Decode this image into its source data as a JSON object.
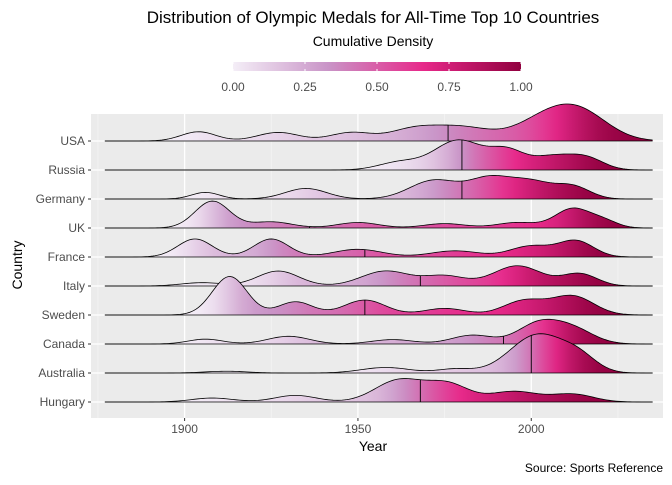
{
  "chart_data": {
    "type": "ridgeline",
    "title": "Distribution of Olympic Medals for All-Time Top 10 Countries",
    "subtitle": "Cumulative Density",
    "xlabel": "Year",
    "ylabel": "Country",
    "caption": "Source: Sports Reference",
    "x_range": [
      1873,
      2038
    ],
    "x_ticks": [
      1900,
      1950,
      2000
    ],
    "legend": {
      "position": "top",
      "breaks": [
        "0.00",
        "0.25",
        "0.50",
        "0.75",
        "1.00"
      ],
      "colors": [
        "#f4eef7",
        "#c994c7",
        "#e7298a",
        "#91003f"
      ]
    },
    "grid": true,
    "quantile_lines": "median",
    "series": [
      {
        "name": "USA",
        "x_start": 1877,
        "x_end": 2035,
        "median": 1976,
        "peaks": [
          [
            1904,
            0.42,
            5
          ],
          [
            1927,
            0.39,
            6
          ],
          [
            1948,
            0.38,
            6
          ],
          [
            1966,
            0.52,
            7
          ],
          [
            1980,
            0.6,
            8
          ],
          [
            2005,
            1.05,
            9
          ],
          [
            2015,
            0.95,
            8
          ]
        ]
      },
      {
        "name": "Russia",
        "x_start": 1877,
        "x_end": 2035,
        "median": 1980,
        "peaks": [
          [
            1962,
            0.35,
            6
          ],
          [
            1979,
            1.35,
            7
          ],
          [
            1993,
            0.8,
            5
          ],
          [
            2006,
            0.6,
            6
          ],
          [
            2016,
            0.5,
            5
          ]
        ]
      },
      {
        "name": "Germany",
        "x_start": 1877,
        "x_end": 2035,
        "median": 1980,
        "peaks": [
          [
            1906,
            0.3,
            4
          ],
          [
            1935,
            0.48,
            6
          ],
          [
            1972,
            0.85,
            7
          ],
          [
            1988,
            0.9,
            6
          ],
          [
            2000,
            0.75,
            6
          ],
          [
            2012,
            0.55,
            5
          ]
        ]
      },
      {
        "name": "UK",
        "x_start": 1877,
        "x_end": 2035,
        "median": 1936,
        "peaks": [
          [
            1908,
            1.22,
            5
          ],
          [
            1925,
            0.28,
            6
          ],
          [
            1950,
            0.25,
            6
          ],
          [
            1975,
            0.2,
            6
          ],
          [
            1996,
            0.25,
            6
          ],
          [
            2012,
            0.88,
            5
          ],
          [
            2021,
            0.3,
            4
          ]
        ]
      },
      {
        "name": "France",
        "x_start": 1877,
        "x_end": 2035,
        "median": 1952,
        "peaks": [
          [
            1903,
            0.82,
            5
          ],
          [
            1925,
            0.82,
            5
          ],
          [
            1950,
            0.35,
            7
          ],
          [
            1978,
            0.28,
            7
          ],
          [
            2000,
            0.5,
            6
          ],
          [
            2013,
            0.72,
            5
          ]
        ]
      },
      {
        "name": "Italy",
        "x_start": 1877,
        "x_end": 2035,
        "median": 1968,
        "peaks": [
          [
            1905,
            0.15,
            6
          ],
          [
            1927,
            0.68,
            6
          ],
          [
            1958,
            0.68,
            7
          ],
          [
            1975,
            0.45,
            6
          ],
          [
            1996,
            0.92,
            7
          ],
          [
            2014,
            0.55,
            5
          ]
        ]
      },
      {
        "name": "Sweden",
        "x_start": 1877,
        "x_end": 2035,
        "median": 1952,
        "peaks": [
          [
            1913,
            1.75,
            5
          ],
          [
            1932,
            0.6,
            5
          ],
          [
            1952,
            0.68,
            6
          ],
          [
            1975,
            0.3,
            6
          ],
          [
            1998,
            0.65,
            6
          ],
          [
            2012,
            0.85,
            6
          ]
        ]
      },
      {
        "name": "Canada",
        "x_start": 1877,
        "x_end": 2035,
        "median": 1992,
        "peaks": [
          [
            1906,
            0.22,
            5
          ],
          [
            1930,
            0.35,
            6
          ],
          [
            1960,
            0.2,
            6
          ],
          [
            1983,
            0.4,
            6
          ],
          [
            2002,
            0.9,
            6
          ],
          [
            2012,
            0.65,
            6
          ]
        ]
      },
      {
        "name": "Australia",
        "x_start": 1877,
        "x_end": 2035,
        "median": 2000,
        "peaks": [
          [
            1912,
            0.08,
            6
          ],
          [
            1958,
            0.25,
            7
          ],
          [
            1978,
            0.18,
            5
          ],
          [
            2002,
            1.75,
            8
          ],
          [
            2014,
            0.55,
            5
          ]
        ]
      },
      {
        "name": "Hungary",
        "x_start": 1877,
        "x_end": 2035,
        "median": 1968,
        "peaks": [
          [
            1908,
            0.18,
            6
          ],
          [
            1932,
            0.3,
            6
          ],
          [
            1962,
            1.0,
            7
          ],
          [
            1976,
            0.78,
            6
          ],
          [
            1995,
            0.48,
            7
          ],
          [
            2012,
            0.35,
            6
          ]
        ]
      }
    ]
  }
}
